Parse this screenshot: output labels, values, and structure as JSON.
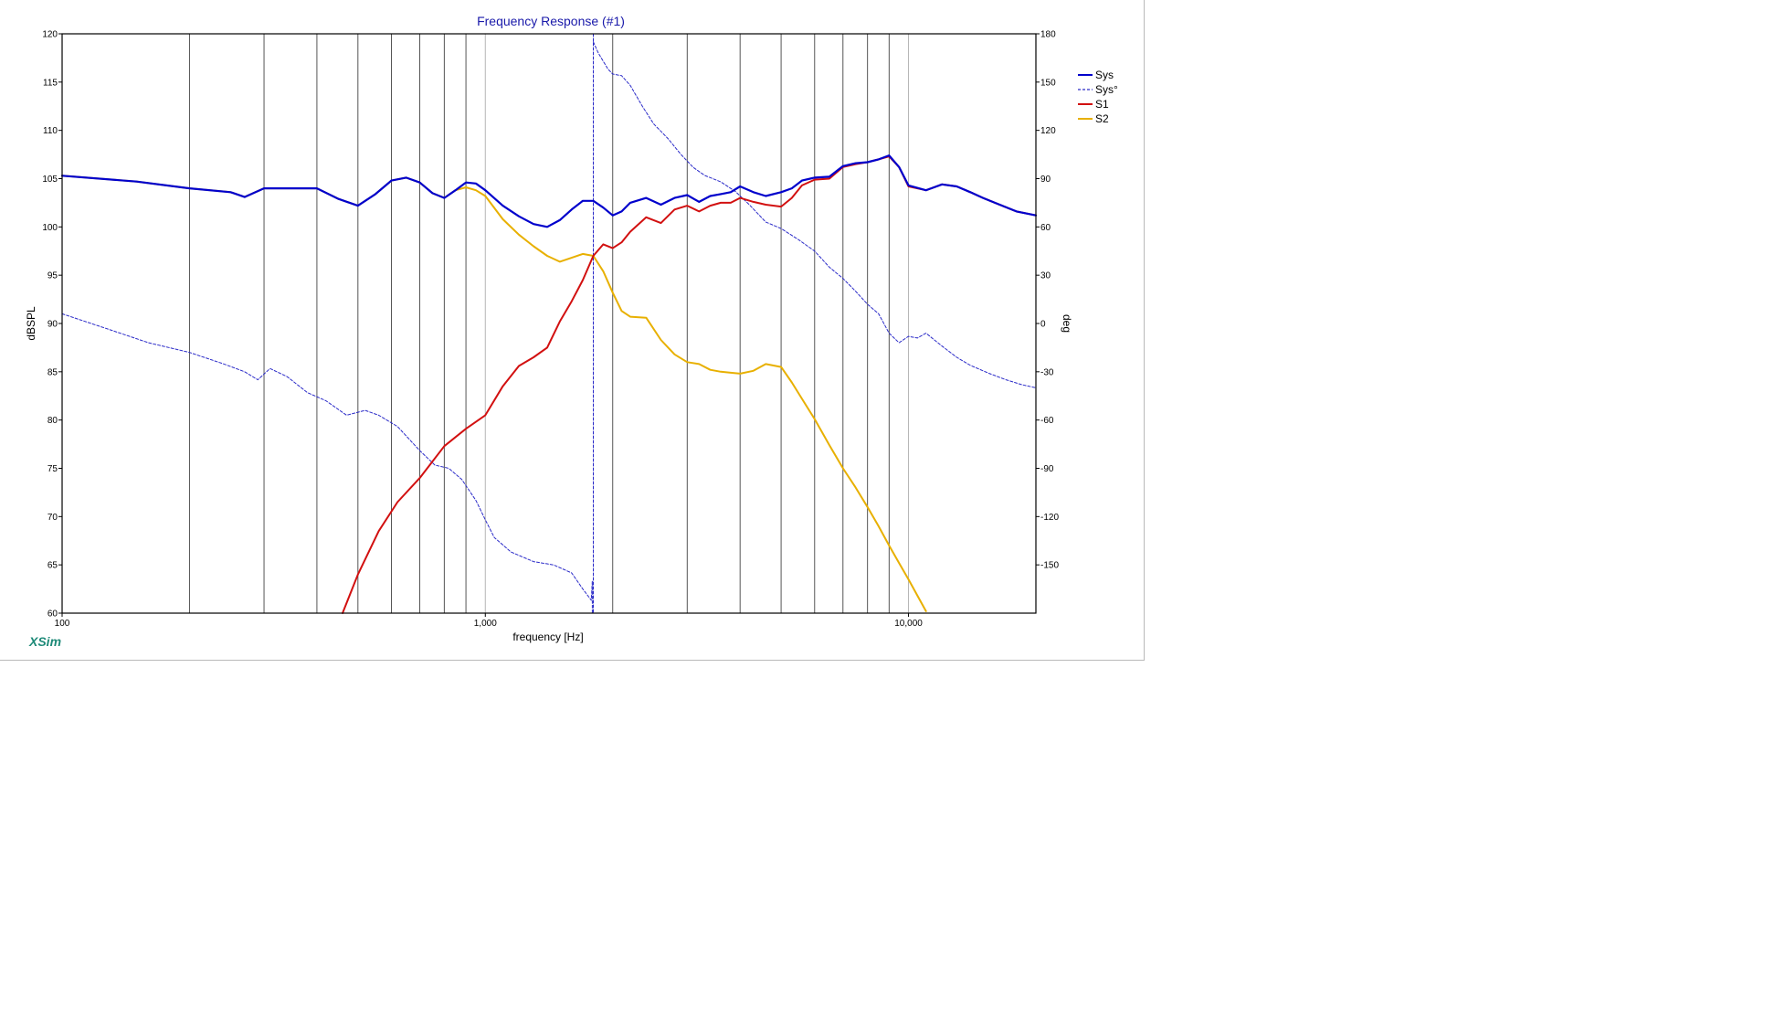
{
  "chart_data": {
    "type": "line",
    "title": "Frequency Response (#1)",
    "xlabel": "frequency [Hz]",
    "ylabel": "dBSPL",
    "y2label": "deg",
    "x_scale": "log",
    "xlim": [
      100,
      20000
    ],
    "ylim": [
      60,
      120
    ],
    "y2lim": [
      -180,
      180
    ],
    "x_ticks": [
      100,
      1000,
      10000
    ],
    "x_tick_labels": [
      "100",
      "1,000",
      "10,000"
    ],
    "x_minor_ticks": [
      200,
      300,
      400,
      500,
      600,
      700,
      800,
      900,
      2000,
      3000,
      4000,
      5000,
      6000,
      7000,
      8000,
      9000
    ],
    "y_ticks": [
      60,
      65,
      70,
      75,
      80,
      85,
      90,
      95,
      100,
      105,
      110,
      115,
      120
    ],
    "y2_ticks": [
      -150,
      -120,
      -90,
      -60,
      -30,
      0,
      30,
      60,
      90,
      120,
      150,
      180
    ],
    "grid": true,
    "legend_position": "top-right",
    "watermark": "XSim",
    "colors": {
      "Sys": "#0000cc",
      "Sys°": "#2a2ac8",
      "S1": "#d21010",
      "S2": "#e8b000",
      "title": "#1a1aaa",
      "watermark": "#1e8a78"
    },
    "series": [
      {
        "name": "Sys",
        "axis": "left",
        "style": "solid",
        "x": [
          100,
          150,
          200,
          250,
          270,
          300,
          350,
          400,
          450,
          500,
          550,
          600,
          650,
          700,
          750,
          800,
          850,
          900,
          950,
          1000,
          1100,
          1200,
          1300,
          1400,
          1500,
          1600,
          1700,
          1800,
          1900,
          2000,
          2100,
          2200,
          2400,
          2600,
          2800,
          3000,
          3200,
          3400,
          3600,
          3800,
          4000,
          4300,
          4600,
          5000,
          5300,
          5600,
          6000,
          6500,
          7000,
          7500,
          8000,
          8500,
          9000,
          9500,
          10000,
          11000,
          12000,
          13000,
          14000,
          15000,
          16000,
          18000,
          20000
        ],
        "y": [
          105.3,
          104.7,
          104,
          103.6,
          103.1,
          104,
          104,
          104,
          102.9,
          102.2,
          103.4,
          104.8,
          105.1,
          104.6,
          103.5,
          103,
          103.8,
          104.6,
          104.5,
          103.8,
          102.2,
          101.1,
          100.3,
          100,
          100.7,
          101.8,
          102.7,
          102.7,
          102,
          101.2,
          101.6,
          102.5,
          103,
          102.3,
          103,
          103.3,
          102.6,
          103.2,
          103.4,
          103.6,
          104.2,
          103.6,
          103.2,
          103.6,
          104,
          104.8,
          105.1,
          105.2,
          106.3,
          106.6,
          106.7,
          107,
          107.4,
          106.2,
          104.3,
          103.8,
          104.4,
          104.2,
          103.6,
          103,
          102.5,
          101.6,
          101.2
        ]
      },
      {
        "name": "Sys°",
        "axis": "right",
        "style": "dashed",
        "x": [
          100,
          130,
          160,
          200,
          240,
          270,
          290,
          310,
          340,
          380,
          420,
          470,
          520,
          560,
          620,
          700,
          760,
          820,
          880,
          950,
          1000,
          1050,
          1150,
          1300,
          1450,
          1600,
          1700,
          1780,
          1790,
          1800,
          1850,
          1950,
          2000,
          2100,
          2200,
          2350,
          2500,
          2700,
          2900,
          3100,
          3300,
          3600,
          3900,
          4200,
          4600,
          5000,
          5500,
          6000,
          6500,
          7000,
          7500,
          8000,
          8500,
          9000,
          9500,
          10000,
          10500,
          11000,
          12000,
          13000,
          14000,
          15500,
          17000,
          18500,
          20000
        ],
        "y": [
          6,
          -4,
          -12,
          -18,
          -25,
          -30,
          -35,
          -28,
          -33,
          -43,
          -48,
          -57,
          -54,
          -57,
          -64,
          -79,
          -88,
          -90,
          -97,
          -110,
          -122,
          -133,
          -142,
          -148,
          -150,
          -155,
          -165,
          -172,
          -160,
          175,
          168,
          158,
          155,
          154,
          148,
          135,
          124,
          115,
          105,
          97,
          92,
          88,
          82,
          74,
          63,
          59,
          52,
          45,
          35,
          28,
          20,
          12,
          6,
          -6,
          -12,
          -8,
          -9,
          -6,
          -14,
          -21,
          -26,
          -31,
          -35,
          -38,
          -40
        ]
      },
      {
        "name": "S1",
        "axis": "left",
        "style": "solid",
        "x": [
          460,
          500,
          560,
          620,
          700,
          800,
          900,
          1000,
          1100,
          1200,
          1300,
          1400,
          1500,
          1600,
          1700,
          1800,
          1900,
          2000,
          2100,
          2200,
          2400,
          2600,
          2800,
          3000,
          3200,
          3400,
          3600,
          3800,
          4000,
          4300,
          4600,
          5000,
          5300,
          5600,
          6000,
          6500,
          7000,
          7500,
          8000,
          8500,
          9000,
          9500,
          10000,
          11000,
          12000,
          13000,
          14000,
          15000,
          16000,
          18000,
          20000
        ],
        "y": [
          60,
          64,
          68.5,
          71.5,
          74,
          77.3,
          79.1,
          80.5,
          83.5,
          85.6,
          86.5,
          87.5,
          90.2,
          92.3,
          94.5,
          97,
          98.2,
          97.8,
          98.4,
          99.5,
          101,
          100.4,
          101.8,
          102.2,
          101.6,
          102.2,
          102.5,
          102.5,
          103,
          102.6,
          102.3,
          102.1,
          103,
          104.3,
          104.9,
          105,
          106.2,
          106.5,
          106.7,
          107,
          107.3,
          106.2,
          104.2,
          103.8,
          104.4,
          104.2,
          103.6,
          103,
          102.5,
          101.6,
          101.2
        ]
      },
      {
        "name": "S2",
        "axis": "left",
        "style": "solid",
        "x": [
          100,
          150,
          200,
          250,
          270,
          300,
          350,
          400,
          450,
          500,
          550,
          600,
          650,
          700,
          750,
          800,
          850,
          900,
          950,
          1000,
          1100,
          1200,
          1300,
          1400,
          1500,
          1600,
          1700,
          1800,
          1900,
          2000,
          2100,
          2200,
          2400,
          2600,
          2800,
          3000,
          3200,
          3400,
          3600,
          3800,
          4000,
          4300,
          4600,
          5000,
          5300,
          5600,
          6000,
          6500,
          7000,
          7500,
          8000,
          8500,
          9000,
          9500,
          10000,
          10500,
          11000
        ],
        "y": [
          105.3,
          104.7,
          104,
          103.6,
          103.1,
          104,
          104,
          104,
          102.9,
          102.2,
          103.4,
          104.8,
          105.1,
          104.6,
          103.5,
          103,
          103.8,
          104.1,
          103.8,
          103.2,
          100.8,
          99.2,
          98,
          97,
          96.4,
          96.8,
          97.2,
          97,
          95.4,
          93.2,
          91.3,
          90.7,
          90.6,
          88.3,
          86.8,
          86,
          85.8,
          85.2,
          85,
          84.9,
          84.8,
          85.1,
          85.8,
          85.5,
          83.9,
          82.2,
          80.1,
          77.4,
          75,
          73,
          71,
          69,
          67,
          65.2,
          63.5,
          61.8,
          60.2
        ]
      }
    ]
  }
}
